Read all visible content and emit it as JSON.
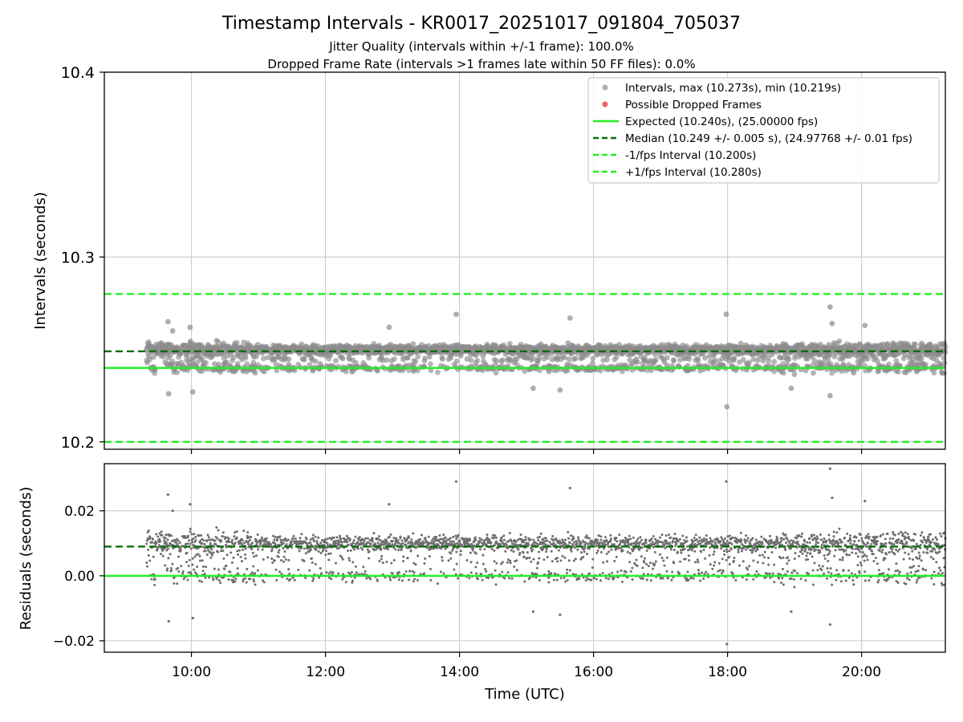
{
  "title": "Timestamp Intervals - KR0017_20251017_091804_705037",
  "subtitle_line1": "Jitter Quality (intervals within +/-1 frame): 100.0%",
  "subtitle_line2": "Dropped Frame Rate (intervals >1 frames late within 50 FF files): 0.0%",
  "chart_data": [
    {
      "id": "intervals",
      "type": "scatter",
      "ylabel": "Intervals (seconds)",
      "xlabel": "",
      "xlim_hours": [
        8.7,
        21.25
      ],
      "ylim": [
        10.196,
        10.4
      ],
      "yticks": [
        10.2,
        10.3,
        10.4
      ],
      "ytick_labels": [
        "10.2",
        "10.3",
        "10.4"
      ],
      "grid": true,
      "point_count": 2800,
      "time_start_hours": 9.33,
      "time_end_hours": 21.25,
      "interval_max": 10.273,
      "interval_min": 10.219,
      "expected": 10.24,
      "median": 10.249,
      "lower_bound": 10.2,
      "upper_bound": 10.28,
      "outliers": [
        {
          "t": 9.65,
          "y": 10.265
        },
        {
          "t": 9.72,
          "y": 10.26
        },
        {
          "t": 9.98,
          "y": 10.262
        },
        {
          "t": 9.66,
          "y": 10.226
        },
        {
          "t": 10.02,
          "y": 10.227
        },
        {
          "t": 12.95,
          "y": 10.262
        },
        {
          "t": 13.95,
          "y": 10.269
        },
        {
          "t": 15.65,
          "y": 10.267
        },
        {
          "t": 17.98,
          "y": 10.269
        },
        {
          "t": 17.99,
          "y": 10.219
        },
        {
          "t": 19.53,
          "y": 10.273
        },
        {
          "t": 19.56,
          "y": 10.264
        },
        {
          "t": 19.53,
          "y": 10.225
        },
        {
          "t": 18.95,
          "y": 10.229
        },
        {
          "t": 20.05,
          "y": 10.263
        },
        {
          "t": 15.1,
          "y": 10.229
        },
        {
          "t": 15.5,
          "y": 10.228
        }
      ],
      "legend": {
        "placement": "upper-right",
        "entries": [
          {
            "label": "Intervals, max (10.273s), min (10.219s)",
            "kind": "scatter",
            "color": "#9e9e9e"
          },
          {
            "label": "Possible Dropped Frames",
            "kind": "scatter",
            "color": "#f06060"
          },
          {
            "label": "Expected (10.240s), (25.00000 fps)",
            "kind": "line",
            "color": "#22ee22",
            "style": "solid"
          },
          {
            "label": "Median (10.249 +/- 0.005 s), (24.97768 +/- 0.01 fps)",
            "kind": "line",
            "color": "#0a6e0a",
            "style": "dashed"
          },
          {
            "label": "-1/fps Interval (10.200s)",
            "kind": "line",
            "color": "#22ee22",
            "style": "dashed"
          },
          {
            "label": "+1/fps Interval (10.280s)",
            "kind": "line",
            "color": "#22ee22",
            "style": "dashed"
          }
        ]
      }
    },
    {
      "id": "residuals",
      "type": "scatter",
      "ylabel": "Residuals (seconds)",
      "xlabel": "Time (UTC)",
      "xlim_hours": [
        8.7,
        21.25
      ],
      "ylim": [
        -0.0235,
        0.0345
      ],
      "yticks": [
        -0.02,
        0.0,
        0.02
      ],
      "ytick_labels": [
        "−0.02",
        "0.00",
        "0.02"
      ],
      "xticks_hours": [
        10,
        12,
        14,
        16,
        18,
        20
      ],
      "xtick_labels": [
        "10:00",
        "12:00",
        "14:00",
        "16:00",
        "18:00",
        "20:00"
      ],
      "grid": true,
      "point_count": 2800,
      "zero_line": 0.0,
      "median_line": 0.009
    }
  ],
  "colors": {
    "points_top": "#8c8c8c",
    "points_bottom": "#6e6e6e",
    "expected": "#22ee22",
    "median": "#0a6e0a",
    "grid": "#cfcfcf"
  }
}
